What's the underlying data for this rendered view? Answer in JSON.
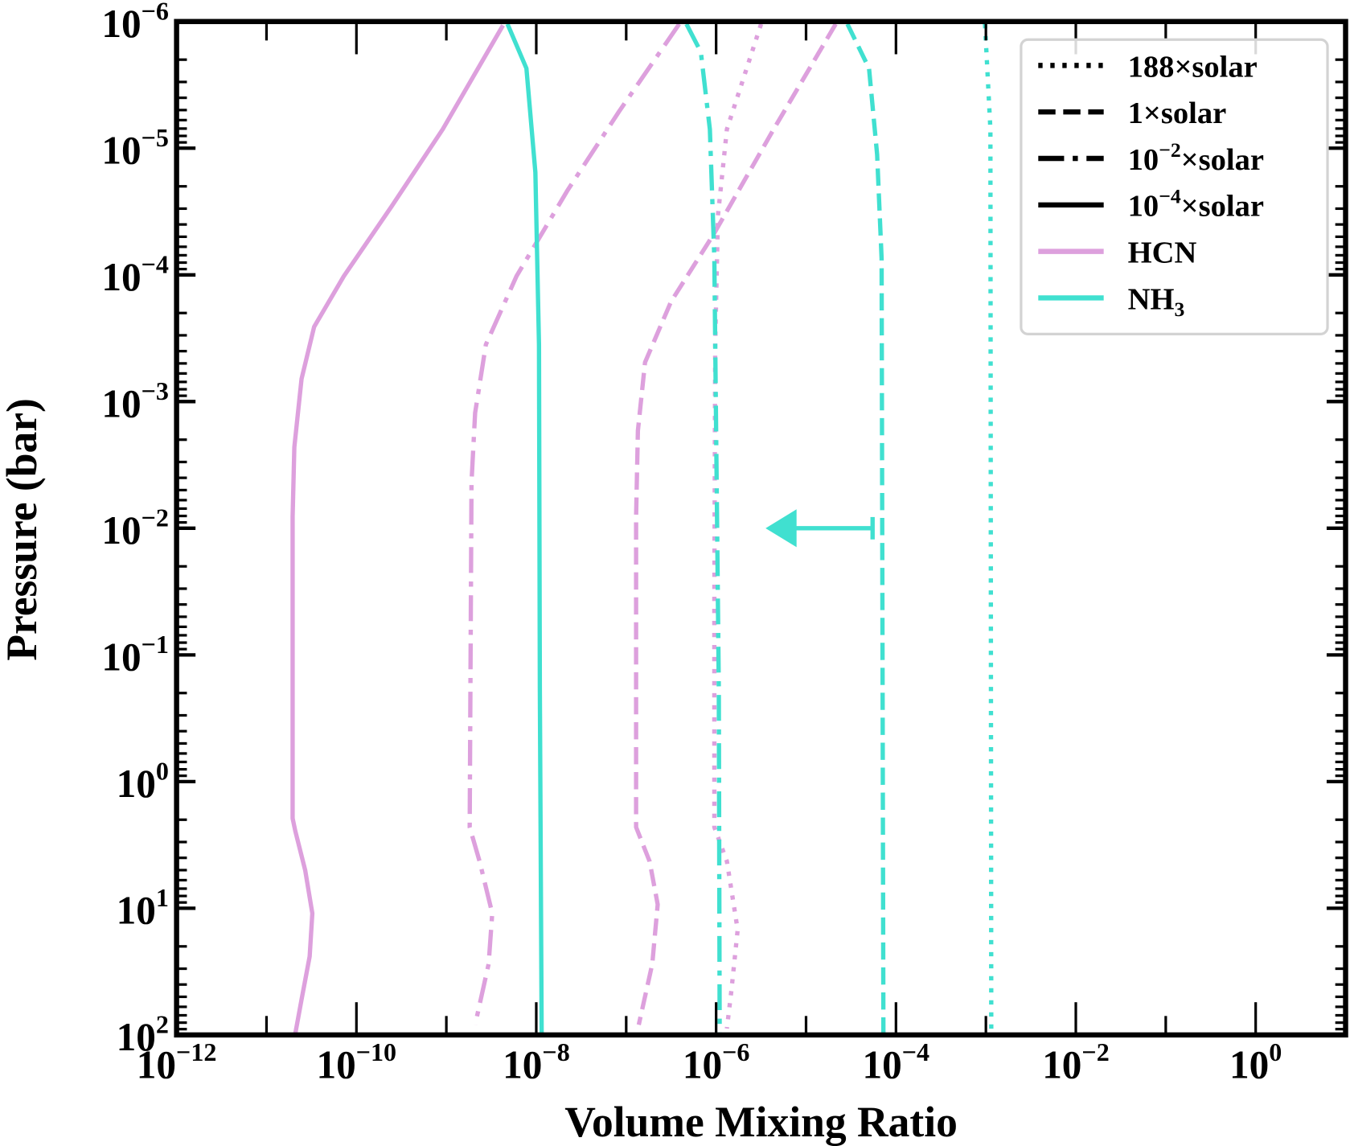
{
  "chart_data": {
    "type": "line",
    "xlabel": "Volume Mixing Ratio",
    "ylabel": "Pressure (bar)",
    "xscale": "log",
    "yscale": "log",
    "xlim": [
      1e-12,
      10
    ],
    "ylim": [
      100,
      1e-06
    ],
    "y_inverted": true,
    "x_ticks": [
      {
        "exp": -12,
        "base": "10",
        "sup": "−12"
      },
      {
        "exp": -10,
        "base": "10",
        "sup": "−10"
      },
      {
        "exp": -8,
        "base": "10",
        "sup": "−8"
      },
      {
        "exp": -6,
        "base": "10",
        "sup": "−6"
      },
      {
        "exp": -4,
        "base": "10",
        "sup": "−4"
      },
      {
        "exp": -2,
        "base": "10",
        "sup": "−2"
      },
      {
        "exp": 0,
        "base": "10",
        "sup": "0"
      }
    ],
    "y_ticks": [
      {
        "exp": -6,
        "base": "10",
        "sup": "−6"
      },
      {
        "exp": -5,
        "base": "10",
        "sup": "−5"
      },
      {
        "exp": -4,
        "base": "10",
        "sup": "−4"
      },
      {
        "exp": -3,
        "base": "10",
        "sup": "−3"
      },
      {
        "exp": -2,
        "base": "10",
        "sup": "−2"
      },
      {
        "exp": -1,
        "base": "10",
        "sup": "−1"
      },
      {
        "exp": 0,
        "base": "10",
        "sup": "0"
      },
      {
        "exp": 1,
        "base": "10",
        "sup": "1"
      },
      {
        "exp": 2,
        "base": "10",
        "sup": "2"
      }
    ],
    "colors": {
      "HCN": "#DDA0DD",
      "NH3": "#40E0D0"
    },
    "legend": {
      "placement": "top-right",
      "entries": [
        {
          "label": "188×solar",
          "style": "dotted",
          "color": "#000000"
        },
        {
          "label": "1×solar",
          "style": "dashed",
          "color": "#000000"
        },
        {
          "label_base": "10",
          "label_sup": "−2",
          "label_rest": "×solar",
          "label": "10^-2×solar",
          "style": "dashdot",
          "color": "#000000"
        },
        {
          "label_base": "10",
          "label_sup": "−4",
          "label_rest": "×solar",
          "label": "10^-4×solar",
          "style": "solid",
          "color": "#000000"
        },
        {
          "label": "HCN",
          "style": "solid",
          "color": "#DDA0DD"
        },
        {
          "label_base": "NH",
          "label_sub": "3",
          "label": "NH3",
          "style": "solid",
          "color": "#40E0D0"
        }
      ]
    },
    "series_note": "points are [log10(VMR), log10(P/bar)]",
    "series": [
      {
        "name": "HCN 10^-4×solar",
        "species": "HCN",
        "style": "solid",
        "points": [
          [
            -8.37,
            -5.97
          ],
          [
            -9.04,
            -5.15
          ],
          [
            -9.61,
            -4.54
          ],
          [
            -10.14,
            -3.99
          ],
          [
            -10.47,
            -3.59
          ],
          [
            -10.61,
            -3.18
          ],
          [
            -10.69,
            -2.64
          ],
          [
            -10.71,
            -2.09
          ],
          [
            -10.71,
            0.29
          ],
          [
            -10.68,
            0.39
          ],
          [
            -10.57,
            0.7
          ],
          [
            -10.49,
            1.04
          ],
          [
            -10.52,
            1.38
          ],
          [
            -10.61,
            1.72
          ],
          [
            -10.68,
            1.99
          ]
        ]
      },
      {
        "name": "HCN 10^-2×solar",
        "species": "HCN",
        "style": "dashdot",
        "points": [
          [
            -6.41,
            -5.98
          ],
          [
            -7.08,
            -5.29
          ],
          [
            -7.65,
            -4.67
          ],
          [
            -8.22,
            -3.99
          ],
          [
            -8.56,
            -3.45
          ],
          [
            -8.68,
            -2.91
          ],
          [
            -8.72,
            -2.36
          ],
          [
            -8.74,
            0.36
          ],
          [
            -8.63,
            0.63
          ],
          [
            -8.49,
            1.04
          ],
          [
            -8.53,
            1.44
          ],
          [
            -8.68,
            1.92
          ]
        ]
      },
      {
        "name": "HCN 1×solar",
        "species": "HCN",
        "style": "dashed",
        "points": [
          [
            -4.67,
            -5.98
          ],
          [
            -5.36,
            -5.15
          ],
          [
            -6.02,
            -4.33
          ],
          [
            -6.5,
            -3.79
          ],
          [
            -6.79,
            -3.31
          ],
          [
            -6.87,
            -2.77
          ],
          [
            -6.89,
            -2.09
          ],
          [
            -6.89,
            0.36
          ],
          [
            -6.74,
            0.63
          ],
          [
            -6.65,
            0.97
          ],
          [
            -6.71,
            1.44
          ],
          [
            -6.86,
            1.92
          ]
        ]
      },
      {
        "name": "HCN 188×solar",
        "species": "HCN",
        "style": "dotted",
        "points": [
          [
            -5.5,
            -5.98
          ],
          [
            -5.88,
            -5.15
          ],
          [
            -5.98,
            -4.47
          ],
          [
            -6.01,
            -3.45
          ],
          [
            -6.02,
            -1.41
          ],
          [
            -6.02,
            0.36
          ],
          [
            -5.88,
            0.63
          ],
          [
            -5.76,
            1.17
          ],
          [
            -5.83,
            1.65
          ],
          [
            -5.88,
            1.95
          ]
        ]
      },
      {
        "name": "NH3 10^-4×solar",
        "species": "NH3",
        "style": "solid",
        "points": [
          [
            -8.32,
            -5.98
          ],
          [
            -8.11,
            -5.63
          ],
          [
            -8.01,
            -4.81
          ],
          [
            -7.97,
            -3.45
          ],
          [
            -7.96,
            -0.73
          ],
          [
            -7.94,
            1.99
          ]
        ]
      },
      {
        "name": "NH3 10^-2×solar",
        "species": "NH3",
        "style": "dashdot",
        "points": [
          [
            -6.33,
            -5.98
          ],
          [
            -6.17,
            -5.76
          ],
          [
            -6.07,
            -5.15
          ],
          [
            -6.02,
            -4.13
          ],
          [
            -5.97,
            -0.73
          ],
          [
            -5.96,
            1.99
          ]
        ]
      },
      {
        "name": "NH3 1×solar",
        "species": "NH3",
        "style": "dashed",
        "points": [
          [
            -4.54,
            -5.98
          ],
          [
            -4.3,
            -5.63
          ],
          [
            -4.21,
            -4.95
          ],
          [
            -4.16,
            -4.13
          ],
          [
            -4.14,
            1.99
          ]
        ]
      },
      {
        "name": "NH3 188×solar",
        "species": "NH3",
        "style": "dotted",
        "points": [
          [
            -3.01,
            -5.98
          ],
          [
            -2.95,
            -5.15
          ],
          [
            -2.94,
            1.99
          ]
        ]
      }
    ],
    "annotations": [
      {
        "type": "upper-limit-arrow",
        "species": "NH3",
        "from_log_vmr": -4.26,
        "to_log_vmr": -5.45,
        "log_pressure": -2
      }
    ]
  }
}
